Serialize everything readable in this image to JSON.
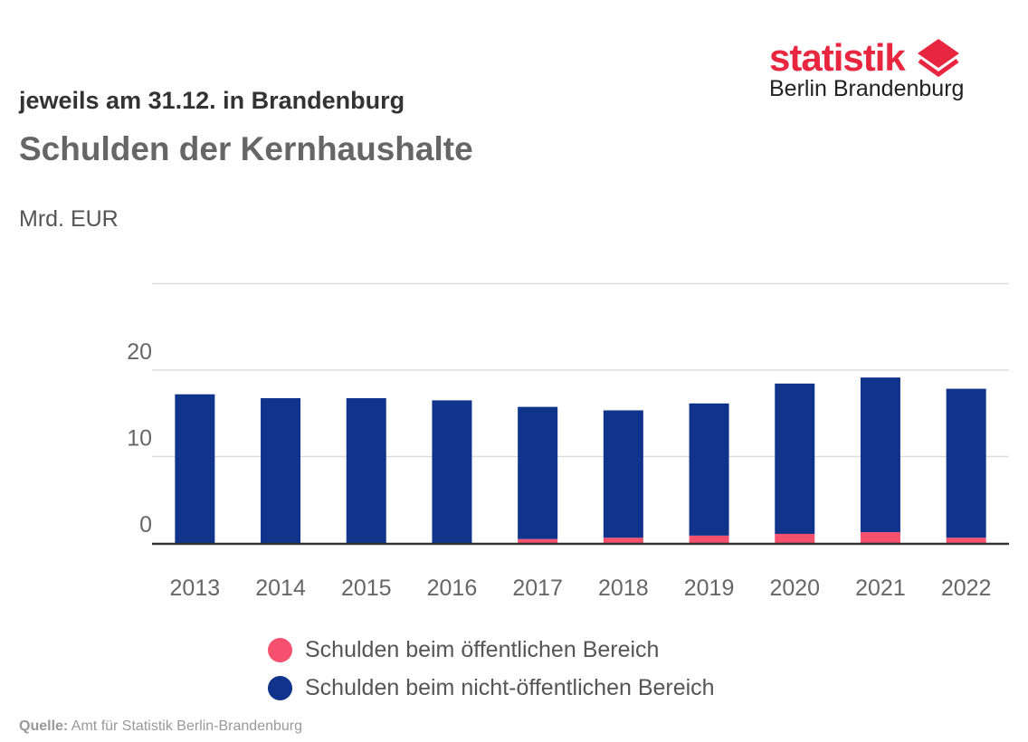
{
  "header": {
    "subtitle": "jeweils am 31.12. in Brandenburg",
    "title": "Schulden der Kernhaushalte",
    "unit": "Mrd. EUR"
  },
  "logo": {
    "line1": "statistik",
    "line2": "Berlin Brandenburg",
    "color": "#e8263f"
  },
  "source": {
    "label": "Quelle:",
    "text": "Amt für Statistik Berlin-Brandenburg"
  },
  "chart_data": {
    "type": "bar",
    "stacked": true,
    "categories": [
      "2013",
      "2014",
      "2015",
      "2016",
      "2017",
      "2018",
      "2019",
      "2020",
      "2021",
      "2022"
    ],
    "ylim": [
      0,
      30
    ],
    "yticks": [
      0,
      10,
      20
    ],
    "grid": true,
    "legend_position": "bottom",
    "series": [
      {
        "name": "Schulden beim öffentlichen Bereich",
        "color": "#f5506e",
        "values": [
          0.0,
          0.0,
          0.0,
          0.0,
          0.45,
          0.6,
          0.85,
          1.05,
          1.25,
          0.6
        ]
      },
      {
        "name": "Schulden beim nicht-öffentlichen Bereich",
        "color": "#10338b",
        "values": [
          17.2,
          16.75,
          16.75,
          16.5,
          15.45,
          14.9,
          15.45,
          17.55,
          18.05,
          17.4
        ]
      }
    ]
  }
}
